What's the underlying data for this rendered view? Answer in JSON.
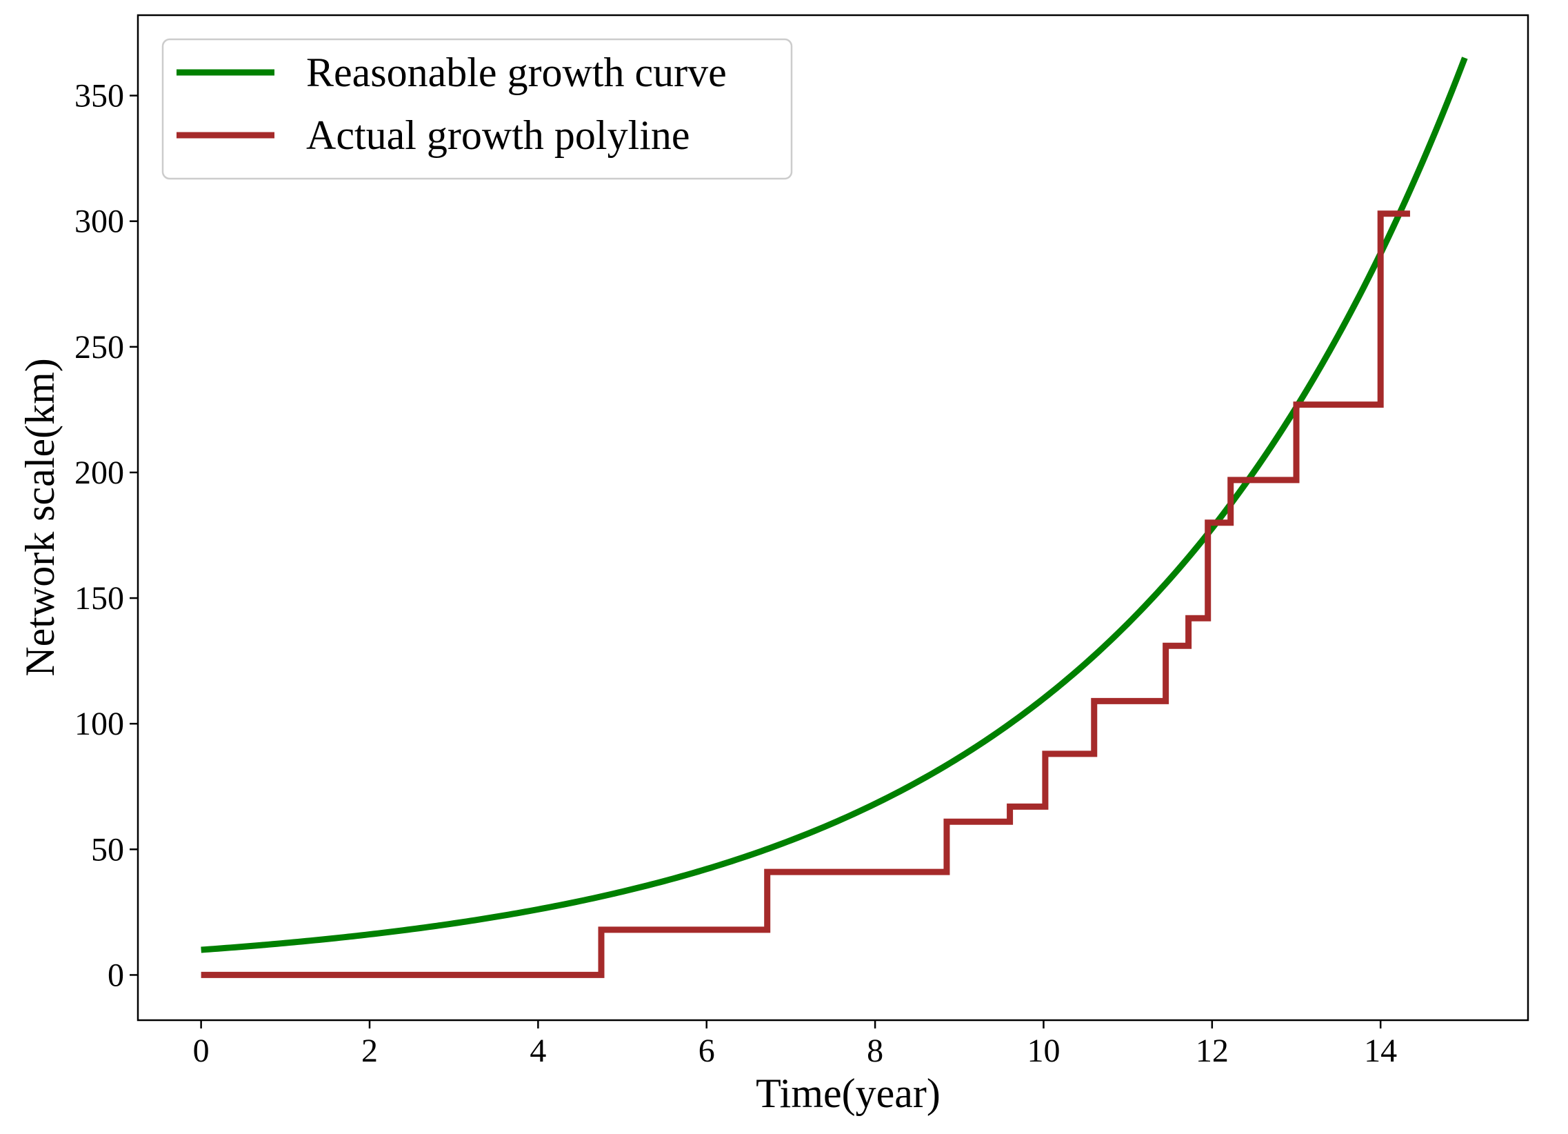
{
  "chart_data": {
    "type": "line",
    "title": "",
    "xlabel": "Time(year)",
    "ylabel": "Network scale(km)",
    "xlim": [
      -0.75,
      15.75
    ],
    "ylim": [
      -18,
      382
    ],
    "xticks": [
      0,
      2,
      4,
      6,
      8,
      10,
      12,
      14
    ],
    "yticks": [
      0,
      50,
      100,
      150,
      200,
      250,
      300,
      350
    ],
    "xtick_labels": [
      "0",
      "2",
      "4",
      "6",
      "8",
      "10",
      "12",
      "14"
    ],
    "ytick_labels": [
      "0",
      "50",
      "100",
      "150",
      "200",
      "250",
      "300",
      "350"
    ],
    "grid": false,
    "legend_position": "upper-left",
    "series": [
      {
        "name": "Reasonable growth curve",
        "color": "#008000",
        "kind": "curve",
        "x": [
          0,
          1,
          2,
          3,
          4,
          5,
          6,
          7,
          8,
          9,
          10,
          11,
          12,
          13,
          14,
          15
        ],
        "y": [
          10,
          12.7,
          16.2,
          20.7,
          26.3,
          33.6,
          42.8,
          54.5,
          69.5,
          88.6,
          113,
          144,
          183.5,
          233.9,
          298.2,
          365
        ]
      },
      {
        "name": "Actual growth polyline",
        "color": "#A52A2A",
        "kind": "step",
        "x": [
          0,
          4.75,
          4.75,
          6.72,
          6.72,
          8.85,
          8.85,
          9.6,
          9.6,
          10.02,
          10.02,
          10.6,
          10.6,
          11.45,
          11.45,
          11.72,
          11.72,
          11.95,
          11.95,
          12.22,
          12.22,
          13.0,
          13.0,
          14.0,
          14.0,
          14.35
        ],
        "y": [
          0,
          0,
          18,
          18,
          41,
          41,
          61,
          61,
          67,
          67,
          88,
          88,
          109,
          109,
          131,
          131,
          142,
          142,
          180,
          180,
          197,
          197,
          227,
          227,
          303,
          303
        ]
      }
    ]
  }
}
